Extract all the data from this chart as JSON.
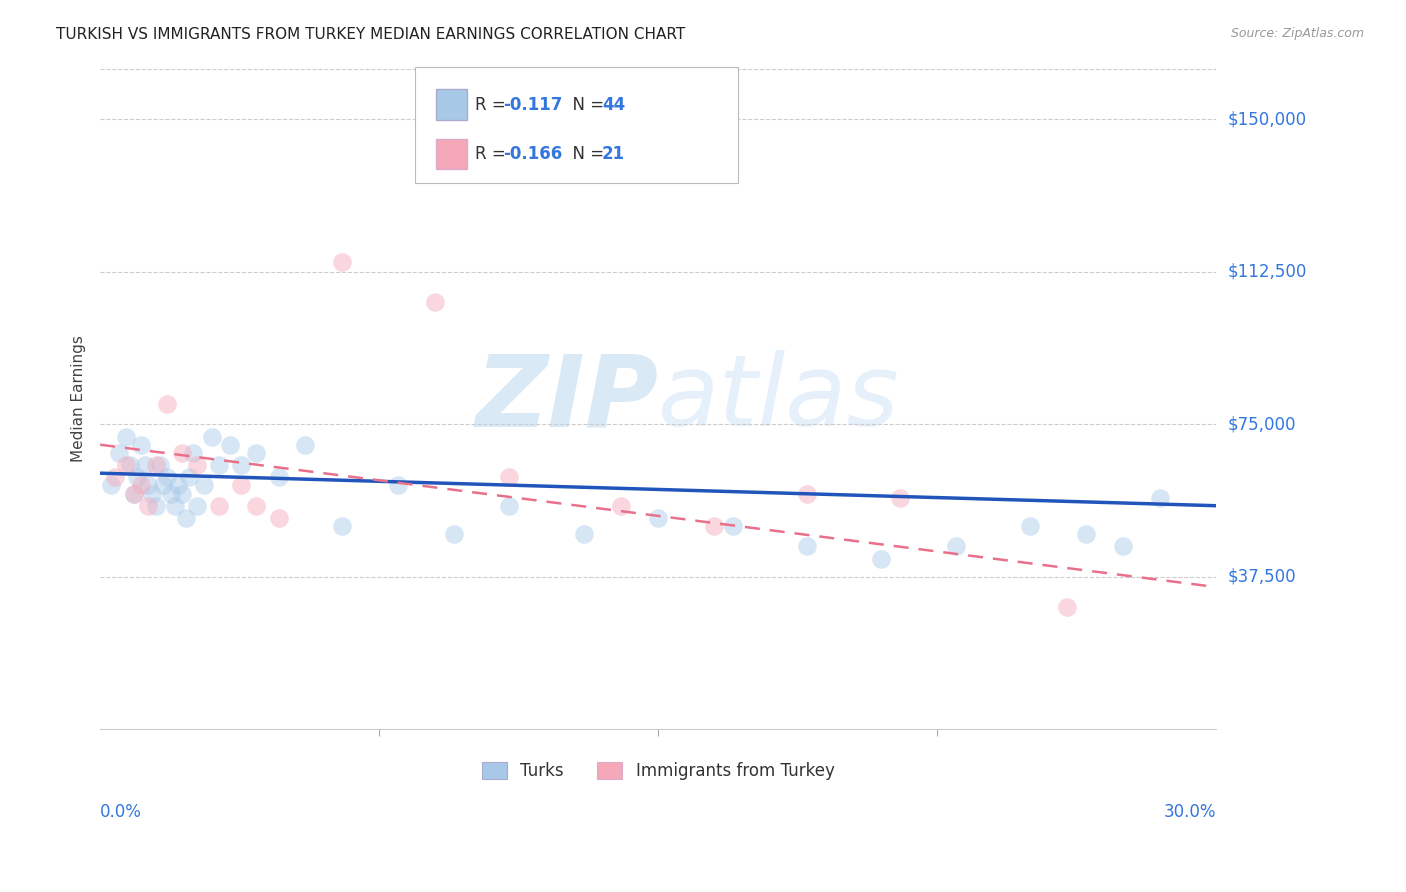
{
  "title": "TURKISH VS IMMIGRANTS FROM TURKEY MEDIAN EARNINGS CORRELATION CHART",
  "source": "Source: ZipAtlas.com",
  "ylabel": "Median Earnings",
  "ytick_labels": [
    "$37,500",
    "$75,000",
    "$112,500",
    "$150,000"
  ],
  "ytick_values": [
    37500,
    75000,
    112500,
    150000
  ],
  "ymin": 0,
  "ymax": 162500,
  "xmin": 0.0,
  "xmax": 0.3,
  "watermark_zip": "ZIP",
  "watermark_atlas": "atlas",
  "legend_blue_R": "-0.117",
  "legend_blue_N": "44",
  "legend_pink_R": "-0.166",
  "legend_pink_N": "21",
  "legend_label_blue": "Turks",
  "legend_label_pink": "Immigrants from Turkey",
  "blue_color": "#A8C8E8",
  "pink_color": "#F4A8B8",
  "blue_line_color": "#2255BB",
  "pink_line_color": "#E8708A",
  "blue_scatter_x": [
    0.003,
    0.005,
    0.007,
    0.008,
    0.009,
    0.01,
    0.011,
    0.012,
    0.013,
    0.014,
    0.015,
    0.016,
    0.017,
    0.018,
    0.019,
    0.02,
    0.021,
    0.022,
    0.023,
    0.024,
    0.025,
    0.026,
    0.028,
    0.03,
    0.032,
    0.035,
    0.038,
    0.042,
    0.048,
    0.055,
    0.065,
    0.08,
    0.095,
    0.11,
    0.13,
    0.15,
    0.17,
    0.19,
    0.21,
    0.23,
    0.25,
    0.265,
    0.275,
    0.285
  ],
  "blue_scatter_y": [
    60000,
    68000,
    72000,
    65000,
    58000,
    62000,
    70000,
    65000,
    60000,
    58000,
    55000,
    65000,
    60000,
    62000,
    58000,
    55000,
    60000,
    58000,
    52000,
    62000,
    68000,
    55000,
    60000,
    72000,
    65000,
    70000,
    65000,
    68000,
    62000,
    70000,
    50000,
    60000,
    48000,
    55000,
    48000,
    52000,
    50000,
    45000,
    42000,
    45000,
    50000,
    48000,
    45000,
    57000
  ],
  "pink_scatter_x": [
    0.004,
    0.007,
    0.009,
    0.011,
    0.013,
    0.015,
    0.018,
    0.022,
    0.026,
    0.032,
    0.038,
    0.042,
    0.048,
    0.065,
    0.09,
    0.11,
    0.14,
    0.165,
    0.19,
    0.215,
    0.26
  ],
  "pink_scatter_y": [
    62000,
    65000,
    58000,
    60000,
    55000,
    65000,
    80000,
    68000,
    65000,
    55000,
    60000,
    55000,
    52000,
    115000,
    105000,
    62000,
    55000,
    50000,
    58000,
    57000,
    30000
  ],
  "blue_line_x": [
    0.0,
    0.3
  ],
  "blue_line_y": [
    63000,
    55000
  ],
  "pink_line_x": [
    0.0,
    0.3
  ],
  "pink_line_y": [
    70000,
    35000
  ],
  "grid_color": "#CCCCCC",
  "background_color": "#FFFFFF",
  "title_fontsize": 11,
  "tick_label_color": "#3377DD",
  "scatter_size": 180,
  "scatter_alpha": 0.45,
  "legend_text_color_label": "#333333",
  "legend_text_color_value": "#3377DD"
}
